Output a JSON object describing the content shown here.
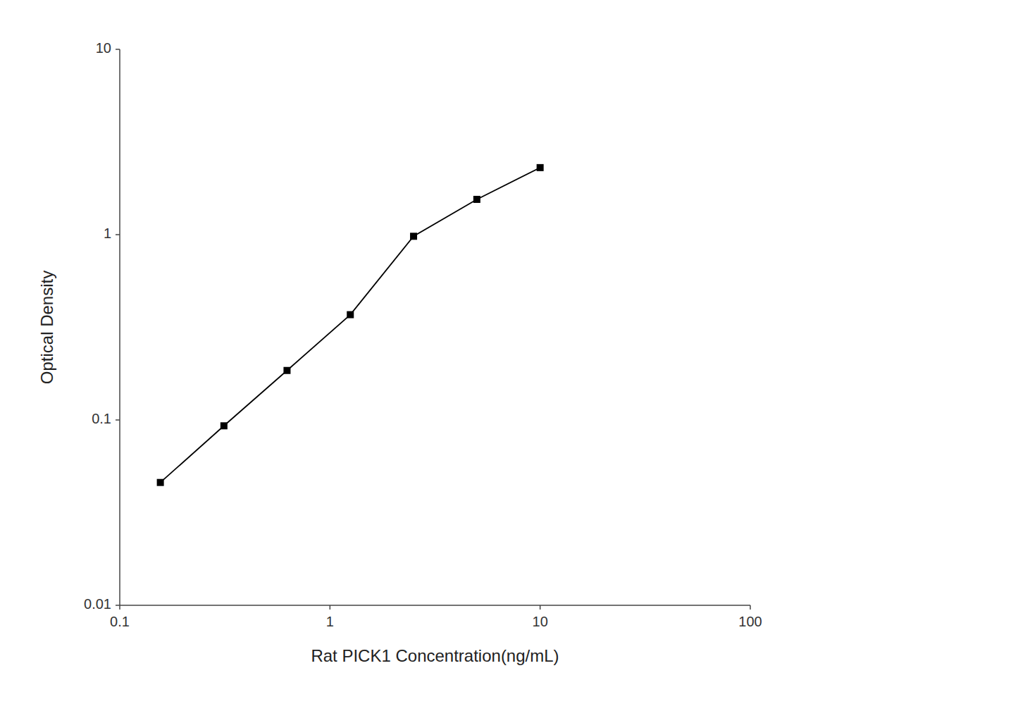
{
  "chart_data": {
    "type": "line",
    "x": [
      0.156,
      0.313,
      0.625,
      1.25,
      2.5,
      5.0,
      10.0
    ],
    "values": [
      0.046,
      0.093,
      0.185,
      0.37,
      0.98,
      1.55,
      2.3
    ],
    "xlabel": "Rat PICK1 Concentration(ng/mL)",
    "ylabel": "Optical Density",
    "xlim": [
      0.1,
      100
    ],
    "ylim": [
      0.01,
      10
    ],
    "xticks": [
      0.1,
      1,
      10,
      100
    ],
    "yticks": [
      0.01,
      0.1,
      1,
      10
    ],
    "log": true,
    "grid": false,
    "color": "#000000",
    "marker": "square"
  }
}
